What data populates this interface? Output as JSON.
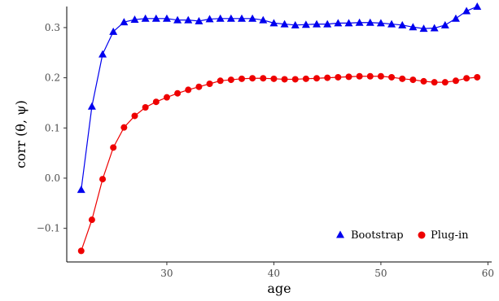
{
  "chart_data": {
    "type": "line",
    "xlabel": "age",
    "ylabel": "corr (θ, ψ)",
    "xlim": [
      20.65,
      60.35
    ],
    "ylim": [
      -0.167,
      0.342
    ],
    "x_ticks": [
      30,
      40,
      50,
      60
    ],
    "x_tick_labels": [
      "30",
      "40",
      "50",
      "60"
    ],
    "y_ticks": [
      -0.1,
      0.0,
      0.1,
      0.2,
      0.3
    ],
    "y_tick_labels": [
      "−0.1",
      "0.0",
      "0.1",
      "0.2",
      "0.3"
    ],
    "grid": false,
    "legend_position": "bottom-right",
    "x": [
      22,
      23,
      24,
      25,
      26,
      27,
      28,
      29,
      30,
      31,
      32,
      33,
      34,
      35,
      36,
      37,
      38,
      39,
      40,
      41,
      42,
      43,
      44,
      45,
      46,
      47,
      48,
      49,
      50,
      51,
      52,
      53,
      54,
      55,
      56,
      57,
      58,
      59
    ],
    "series": [
      {
        "name": "Bootstrap",
        "color": "#0000ee",
        "marker": "triangle",
        "values": [
          -0.023,
          0.143,
          0.247,
          0.292,
          0.311,
          0.316,
          0.318,
          0.318,
          0.318,
          0.315,
          0.315,
          0.313,
          0.317,
          0.318,
          0.318,
          0.318,
          0.318,
          0.315,
          0.309,
          0.307,
          0.305,
          0.306,
          0.307,
          0.307,
          0.309,
          0.309,
          0.31,
          0.31,
          0.309,
          0.307,
          0.305,
          0.301,
          0.298,
          0.299,
          0.305,
          0.318,
          0.333,
          0.342
        ]
      },
      {
        "name": "Plug-in",
        "color": "#ee0000",
        "marker": "circle",
        "values": [
          -0.145,
          -0.083,
          -0.002,
          0.061,
          0.101,
          0.124,
          0.141,
          0.152,
          0.161,
          0.169,
          0.176,
          0.182,
          0.188,
          0.194,
          0.196,
          0.198,
          0.199,
          0.199,
          0.198,
          0.197,
          0.197,
          0.198,
          0.199,
          0.2,
          0.201,
          0.202,
          0.203,
          0.203,
          0.203,
          0.201,
          0.198,
          0.196,
          0.193,
          0.191,
          0.191,
          0.194,
          0.199,
          0.201
        ]
      }
    ]
  }
}
